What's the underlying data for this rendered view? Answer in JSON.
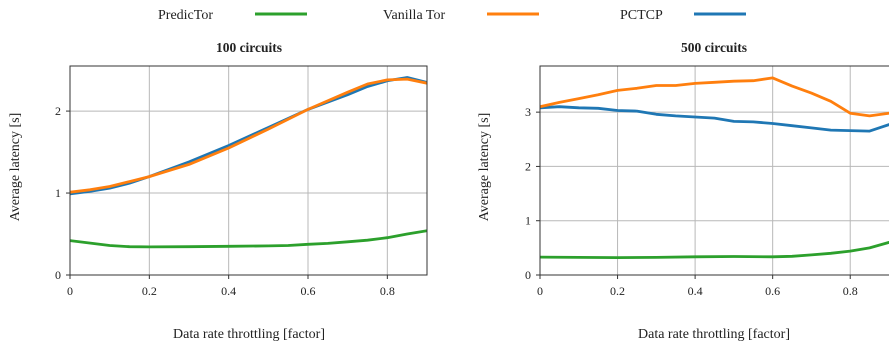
{
  "legend": [
    {
      "name": "PredicTor",
      "color": "#2ca02c"
    },
    {
      "name": "Vanilla Tor",
      "color": "#ff7f0e"
    },
    {
      "name": "PCTCP",
      "color": "#1f77b4"
    }
  ],
  "chart_data": [
    {
      "type": "line",
      "title": "100 circuits",
      "xlabel": "Data rate throttling [factor]",
      "ylabel": "Average latency [s]",
      "xlim": [
        0,
        0.9
      ],
      "ylim": [
        0,
        2.55
      ],
      "xticks": [
        0,
        0.2,
        0.4,
        0.6,
        0.8
      ],
      "xtick_labels": [
        "0",
        "0.2",
        "0.4",
        "0.6",
        "0.8"
      ],
      "yticks": [
        0,
        1,
        2
      ],
      "ytick_labels": [
        "0",
        "1",
        "2"
      ],
      "grid": true,
      "series": [
        {
          "name": "PredicTor",
          "color": "#2ca02c",
          "x": [
            0,
            0.1,
            0.15,
            0.2,
            0.3,
            0.4,
            0.5,
            0.55,
            0.6,
            0.65,
            0.7,
            0.75,
            0.8,
            0.85,
            0.9
          ],
          "y": [
            0.42,
            0.36,
            0.345,
            0.343,
            0.345,
            0.35,
            0.355,
            0.36,
            0.375,
            0.385,
            0.405,
            0.425,
            0.455,
            0.5,
            0.54
          ]
        },
        {
          "name": "PCTCP",
          "color": "#1f77b4",
          "x": [
            0,
            0.05,
            0.1,
            0.15,
            0.2,
            0.3,
            0.4,
            0.5,
            0.6,
            0.7,
            0.75,
            0.8,
            0.85,
            0.9
          ],
          "y": [
            0.99,
            1.02,
            1.06,
            1.12,
            1.2,
            1.38,
            1.58,
            1.8,
            2.02,
            2.2,
            2.3,
            2.37,
            2.41,
            2.35
          ]
        },
        {
          "name": "Vanilla Tor",
          "color": "#ff7f0e",
          "x": [
            0,
            0.05,
            0.1,
            0.15,
            0.2,
            0.3,
            0.4,
            0.5,
            0.6,
            0.7,
            0.75,
            0.8,
            0.85,
            0.9
          ],
          "y": [
            1.01,
            1.04,
            1.08,
            1.14,
            1.2,
            1.35,
            1.55,
            1.78,
            2.02,
            2.23,
            2.33,
            2.38,
            2.39,
            2.34
          ]
        }
      ]
    },
    {
      "type": "line",
      "title": "500 circuits",
      "xlabel": "Data rate throttling [factor]",
      "ylabel": "Average latency [s]",
      "xlim": [
        0,
        0.9
      ],
      "ylim": [
        0,
        3.85
      ],
      "xticks": [
        0,
        0.2,
        0.4,
        0.6,
        0.8
      ],
      "xtick_labels": [
        "0",
        "0.2",
        "0.4",
        "0.6",
        "0.8"
      ],
      "yticks": [
        0,
        1,
        2,
        3
      ],
      "ytick_labels": [
        "0",
        "1",
        "2",
        "3"
      ],
      "grid": true,
      "series": [
        {
          "name": "PredicTor",
          "color": "#2ca02c",
          "x": [
            0,
            0.1,
            0.2,
            0.3,
            0.4,
            0.5,
            0.6,
            0.65,
            0.7,
            0.75,
            0.8,
            0.85,
            0.9
          ],
          "y": [
            0.33,
            0.325,
            0.32,
            0.325,
            0.335,
            0.34,
            0.335,
            0.345,
            0.37,
            0.4,
            0.44,
            0.5,
            0.6
          ]
        },
        {
          "name": "PCTCP",
          "color": "#1f77b4",
          "x": [
            0,
            0.05,
            0.1,
            0.15,
            0.2,
            0.25,
            0.3,
            0.35,
            0.4,
            0.45,
            0.5,
            0.55,
            0.6,
            0.65,
            0.7,
            0.75,
            0.8,
            0.85,
            0.9
          ],
          "y": [
            3.08,
            3.1,
            3.08,
            3.07,
            3.03,
            3.02,
            2.96,
            2.93,
            2.91,
            2.89,
            2.83,
            2.82,
            2.79,
            2.75,
            2.71,
            2.67,
            2.66,
            2.65,
            2.77
          ]
        },
        {
          "name": "Vanilla Tor",
          "color": "#ff7f0e",
          "x": [
            0,
            0.05,
            0.1,
            0.15,
            0.2,
            0.25,
            0.3,
            0.35,
            0.4,
            0.45,
            0.5,
            0.55,
            0.6,
            0.65,
            0.7,
            0.75,
            0.8,
            0.85,
            0.9
          ],
          "y": [
            3.1,
            3.18,
            3.25,
            3.32,
            3.4,
            3.44,
            3.49,
            3.49,
            3.53,
            3.55,
            3.57,
            3.58,
            3.63,
            3.48,
            3.35,
            3.2,
            2.98,
            2.93,
            2.98
          ]
        }
      ]
    }
  ]
}
